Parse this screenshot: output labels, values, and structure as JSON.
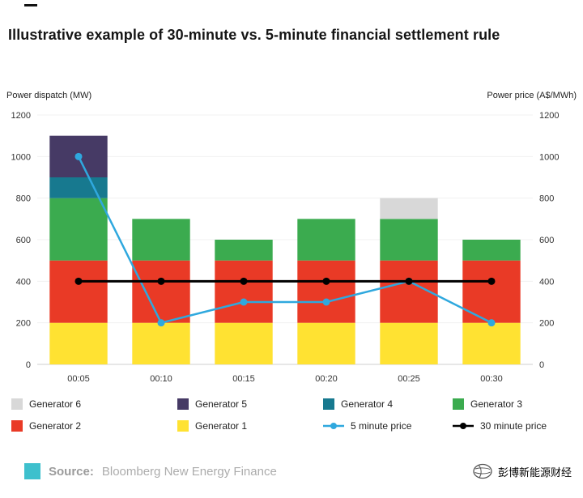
{
  "page": {
    "title": "Illustrative example of 30-minute vs. 5-minute financial settlement rule"
  },
  "axes": {
    "left_label": "Power dispatch (MW)",
    "right_label": "Power price (A$/MWh)"
  },
  "chart_data": {
    "type": "bar",
    "subtype": "stacked-bar-with-lines",
    "categories": [
      "00:05",
      "00:10",
      "00:15",
      "00:20",
      "00:25",
      "00:30"
    ],
    "ylim": [
      0,
      1200
    ],
    "yticks": [
      0,
      200,
      400,
      600,
      800,
      1000,
      1200
    ],
    "left_axis_label": "Power dispatch (MW)",
    "right_axis_label": "Power price (A$/MWh)",
    "grid": false,
    "stack_series": [
      {
        "name": "Generator 1",
        "color": "#FFE232",
        "values": [
          200,
          200,
          200,
          200,
          200,
          200
        ]
      },
      {
        "name": "Generator 2",
        "color": "#E93A26",
        "values": [
          300,
          300,
          300,
          300,
          300,
          300
        ]
      },
      {
        "name": "Generator 3",
        "color": "#3BAB4F",
        "values": [
          300,
          200,
          100,
          200,
          200,
          100
        ]
      },
      {
        "name": "Generator 4",
        "color": "#17798F",
        "values": [
          100,
          0,
          0,
          0,
          0,
          0
        ]
      },
      {
        "name": "Generator 5",
        "color": "#463A65",
        "values": [
          200,
          0,
          0,
          0,
          0,
          0
        ]
      },
      {
        "name": "Generator 6",
        "color": "#D8D8D8",
        "values": [
          0,
          0,
          0,
          0,
          100,
          0
        ]
      }
    ],
    "line_series": [
      {
        "name": "5 minute price",
        "color": "#2FA8DE",
        "values": [
          1000,
          200,
          300,
          300,
          400,
          200
        ]
      },
      {
        "name": "30 minute price",
        "color": "#000000",
        "values": [
          400,
          400,
          400,
          400,
          400,
          400
        ]
      }
    ]
  },
  "legend": {
    "items": [
      {
        "label": "Generator 6",
        "type": "square",
        "color": "#D8D8D8"
      },
      {
        "label": "Generator 5",
        "type": "square",
        "color": "#463A65"
      },
      {
        "label": "Generator 4",
        "type": "square",
        "color": "#17798F"
      },
      {
        "label": "Generator 3",
        "type": "square",
        "color": "#3BAB4F"
      },
      {
        "label": "Generator 2",
        "type": "square",
        "color": "#E93A26"
      },
      {
        "label": "Generator 1",
        "type": "square",
        "color": "#FFE232"
      },
      {
        "label": "5 minute price",
        "type": "line",
        "color": "#2FA8DE"
      },
      {
        "label": "30 minute price",
        "type": "line",
        "color": "#000000"
      }
    ]
  },
  "footer": {
    "brand_color": "#3EC0CD",
    "source_label": "Source:",
    "source_text": "Bloomberg New Energy Finance",
    "wechat_name": "彭博新能源财经"
  }
}
